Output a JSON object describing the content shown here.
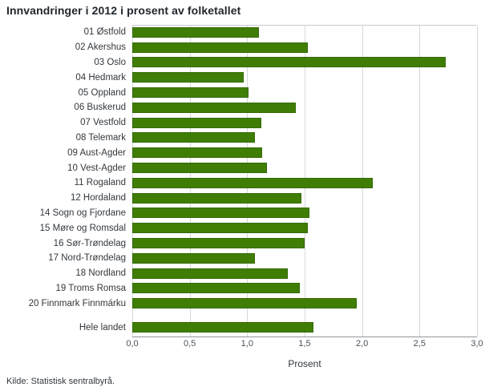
{
  "source": "Kilde: Statistisk sentralbyrå.",
  "chart_data": {
    "type": "bar",
    "orientation": "horizontal",
    "title": "Innvandringer i 2012 i prosent av folketallet",
    "xlabel": "Prosent",
    "ylabel": "",
    "xlim": [
      0,
      3
    ],
    "grid": true,
    "legend": false,
    "colors": {
      "bar": "#3f7d04",
      "bar_border": "#356a03"
    },
    "xticks": [
      0,
      0.5,
      1,
      1.5,
      2,
      2.5,
      3
    ],
    "xtick_labels": [
      "0,0",
      "0,5",
      "1,0",
      "1,5",
      "2,0",
      "2,5",
      "3,0"
    ],
    "categories": [
      "01 Østfold",
      "02 Akershus",
      "03 Oslo",
      "04 Hedmark",
      "05 Oppland",
      "06 Buskerud",
      "07 Vestfold",
      "08 Telemark",
      "09 Aust-Agder",
      "10 Vest-Agder",
      "11 Rogaland",
      "12 Hordaland",
      "14 Sogn og Fjordane",
      "15 Møre og Romsdal",
      "16 Sør-Trøndelag",
      "17 Nord-Trøndelag",
      "18 Nordland",
      "19 Troms Romsa",
      "20 Finnmark Finnmárku",
      "",
      "Hele landet"
    ],
    "values": [
      1.1,
      1.53,
      2.73,
      0.97,
      1.01,
      1.42,
      1.12,
      1.07,
      1.13,
      1.17,
      2.09,
      1.47,
      1.54,
      1.53,
      1.5,
      1.07,
      1.35,
      1.46,
      1.95,
      null,
      1.58
    ]
  }
}
